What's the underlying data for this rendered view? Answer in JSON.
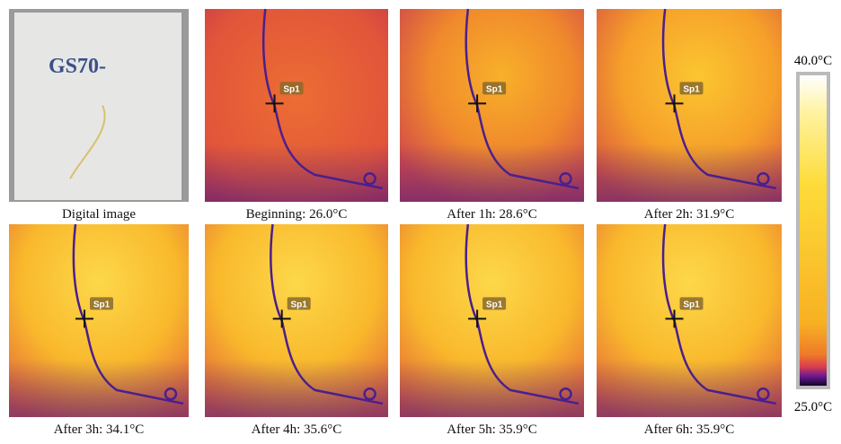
{
  "panels": [
    {
      "caption": "Digital image",
      "board_text": "GS70-"
    },
    {
      "caption": "Beginning: 26.0°C",
      "spot": "Sp1"
    },
    {
      "caption": "After 1h: 28.6°C",
      "spot": "Sp1"
    },
    {
      "caption": "After 2h: 31.9°C",
      "spot": "Sp1"
    },
    {
      "caption": "After 3h: 34.1°C",
      "spot": "Sp1"
    },
    {
      "caption": "After 4h: 35.6°C",
      "spot": "Sp1"
    },
    {
      "caption": "After 5h: 35.9°C",
      "spot": "Sp1"
    },
    {
      "caption": "After 6h: 35.9°C",
      "spot": "Sp1"
    }
  ],
  "colorbar": {
    "max_label": "40.0°C",
    "min_label": "25.0°C"
  }
}
